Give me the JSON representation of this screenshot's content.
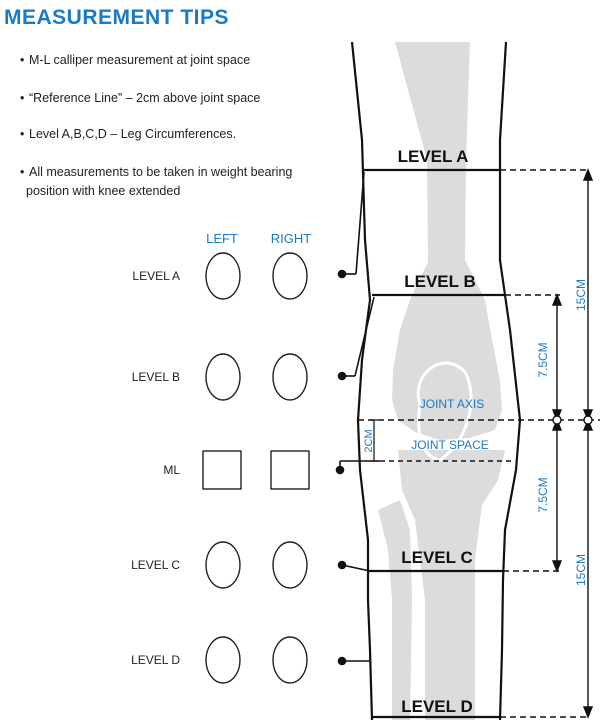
{
  "title": "MEASUREMENT TIPS",
  "tips": [
    "M-L calliper measurement at joint space",
    "“Reference Line” – 2cm above joint space",
    "Level A,B,C,D – Leg Circumferences.",
    "All measurements to be taken in weight bearing",
    "position with knee extended"
  ],
  "columns": {
    "left": "LEFT",
    "right": "RIGHT"
  },
  "rows": [
    "LEVEL A",
    "LEVEL B",
    "ML",
    "LEVEL C",
    "LEVEL D"
  ],
  "leg_levels": [
    "LEVEL A",
    "LEVEL B",
    "LEVEL C",
    "LEVEL D"
  ],
  "joint_axis": "JOINT AXIS",
  "joint_space": "JOINT SPACE",
  "dim_2cm": "2CM",
  "dim_75a": "7.5CM",
  "dim_75b": "7.5CM",
  "dim_15a": "15CM",
  "dim_15b": "15CM",
  "colors": {
    "title": "#1a7ac4",
    "accent": "#1a7ac4",
    "bone": "#dcdcdc",
    "line": "#111111"
  }
}
